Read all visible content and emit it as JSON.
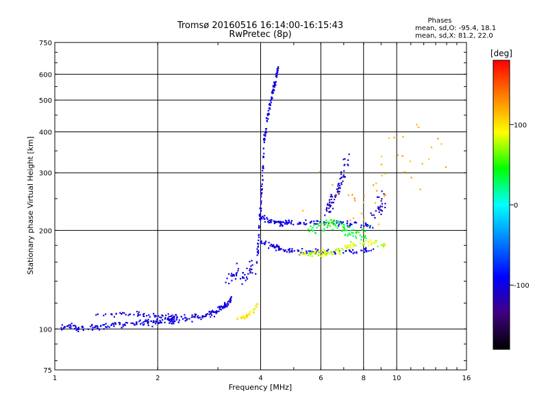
{
  "chart_data": {
    "type": "scatter",
    "title": "Tromsø 20160516 16:14:00-16:15:43",
    "subtitle": "RwPretec (8p)",
    "xlabel": "Frequency [MHz]",
    "ylabel": "Stationary phase Virtual Height [km]",
    "x_scale": "log",
    "y_scale": "log",
    "xlim": [
      1,
      16
    ],
    "ylim": [
      75,
      750
    ],
    "x_ticks": [
      1,
      2,
      4,
      6,
      8,
      10,
      16
    ],
    "y_ticks": [
      75,
      100,
      200,
      300,
      400,
      500,
      600,
      750
    ],
    "grid": true,
    "phase_box": {
      "title": "Phases",
      "line1": "mean, sd,O: -95.4, 18.1",
      "line2": "mean, sd,X:  81.2, 22.0"
    },
    "colorbar": {
      "label": "[deg]",
      "range": [
        -180,
        180
      ],
      "ticks": [
        100,
        0,
        -100
      ],
      "colors": [
        "#ff0000",
        "#ff8000",
        "#ffff00",
        "#00ff00",
        "#00ffff",
        "#0080ff",
        "#0000ff",
        "#400080",
        "#000000"
      ]
    },
    "traces": [
      {
        "points": [
          [
            1.05,
            101
          ],
          [
            1.1,
            104
          ],
          [
            1.15,
            101
          ],
          [
            1.2,
            100
          ],
          [
            1.3,
            101
          ],
          [
            1.4,
            102
          ],
          [
            1.5,
            103
          ],
          [
            1.6,
            103
          ],
          [
            1.7,
            104
          ],
          [
            1.8,
            104
          ],
          [
            1.9,
            105
          ],
          [
            2.0,
            105
          ],
          [
            2.1,
            106
          ],
          [
            2.2,
            106
          ],
          [
            2.3,
            107
          ],
          [
            2.45,
            108
          ],
          [
            2.6,
            109
          ],
          [
            2.75,
            110
          ],
          [
            2.9,
            112
          ],
          [
            3.0,
            114
          ],
          [
            3.1,
            116
          ],
          [
            3.2,
            120
          ],
          [
            3.3,
            125
          ]
        ],
        "phase": -100,
        "spread": 0.025,
        "count": 260
      },
      {
        "points": [
          [
            1.3,
            110
          ],
          [
            1.5,
            111
          ],
          [
            1.7,
            111
          ],
          [
            1.9,
            110
          ],
          [
            2.1,
            109
          ],
          [
            2.3,
            110
          ]
        ],
        "phase": -100,
        "spread": 0.02,
        "count": 60
      },
      {
        "points": [
          [
            3.4,
            108
          ],
          [
            3.6,
            109
          ],
          [
            3.75,
            112
          ],
          [
            3.9,
            118
          ]
        ],
        "phase": 100,
        "spread": 0.015,
        "count": 35
      },
      {
        "points": [
          [
            3.9,
            160
          ],
          [
            3.95,
            190
          ],
          [
            4.0,
            230
          ],
          [
            4.05,
            300
          ],
          [
            4.1,
            380
          ],
          [
            4.2,
            450
          ],
          [
            4.3,
            510
          ],
          [
            4.4,
            560
          ],
          [
            4.5,
            630
          ]
        ],
        "phase": -100,
        "spread": 0.015,
        "count": 150
      },
      {
        "points": [
          [
            4.0,
            220
          ],
          [
            4.2,
            215
          ],
          [
            4.4,
            212
          ],
          [
            4.6,
            210
          ],
          [
            4.8,
            212
          ],
          [
            5.2,
            210
          ],
          [
            5.6,
            212
          ],
          [
            6.0,
            213
          ],
          [
            6.6,
            212
          ],
          [
            7.2,
            210
          ],
          [
            8.0,
            208
          ],
          [
            8.6,
            206
          ]
        ],
        "phase": -100,
        "spread": 0.02,
        "count": 130
      },
      {
        "points": [
          [
            3.95,
            185
          ],
          [
            4.2,
            182
          ],
          [
            4.4,
            178
          ],
          [
            4.7,
            175
          ],
          [
            5.0,
            173
          ],
          [
            5.5,
            172
          ],
          [
            6.0,
            172
          ],
          [
            6.6,
            172
          ],
          [
            7.2,
            172
          ],
          [
            8.0,
            173
          ],
          [
            8.6,
            175
          ]
        ],
        "phase": -100,
        "spread": 0.02,
        "count": 120
      },
      {
        "points": [
          [
            5.2,
            172
          ],
          [
            5.6,
            170
          ],
          [
            6.0,
            170
          ],
          [
            6.4,
            171
          ],
          [
            6.8,
            174
          ],
          [
            7.4,
            180
          ],
          [
            8.0,
            183
          ],
          [
            8.6,
            183
          ],
          [
            9.2,
            180
          ]
        ],
        "phase": 80,
        "spread": 0.025,
        "count": 110
      },
      {
        "points": [
          [
            5.6,
            200
          ],
          [
            6.0,
            205
          ],
          [
            6.4,
            210
          ],
          [
            6.8,
            205
          ],
          [
            7.2,
            200
          ],
          [
            7.6,
            195
          ],
          [
            8.2,
            195
          ]
        ],
        "phase": 40,
        "spread": 0.05,
        "count": 90
      },
      {
        "points": [
          [
            6.2,
            230
          ],
          [
            6.5,
            250
          ],
          [
            6.8,
            270
          ],
          [
            7.0,
            300
          ],
          [
            7.2,
            330
          ]
        ],
        "phase": -110,
        "spread": 0.06,
        "count": 70
      },
      {
        "points": [
          [
            3.2,
            140
          ],
          [
            3.4,
            150
          ],
          [
            3.6,
            145
          ],
          [
            3.8,
            155
          ]
        ],
        "phase": -100,
        "spread": 0.06,
        "count": 45
      },
      {
        "points": [
          [
            5.5,
            240
          ],
          [
            6.5,
            260
          ],
          [
            7.5,
            230
          ],
          [
            8.5,
            250
          ],
          [
            9.0,
            300
          ],
          [
            10.0,
            400
          ],
          [
            12.0,
            300
          ],
          [
            14.0,
            350
          ]
        ],
        "phase": 120,
        "spread": 0.25,
        "count": 45
      },
      {
        "points": [
          [
            8.5,
            220
          ],
          [
            9.0,
            230
          ],
          [
            9.2,
            250
          ],
          [
            8.8,
            260
          ]
        ],
        "phase": -110,
        "spread": 0.05,
        "count": 25
      }
    ]
  }
}
